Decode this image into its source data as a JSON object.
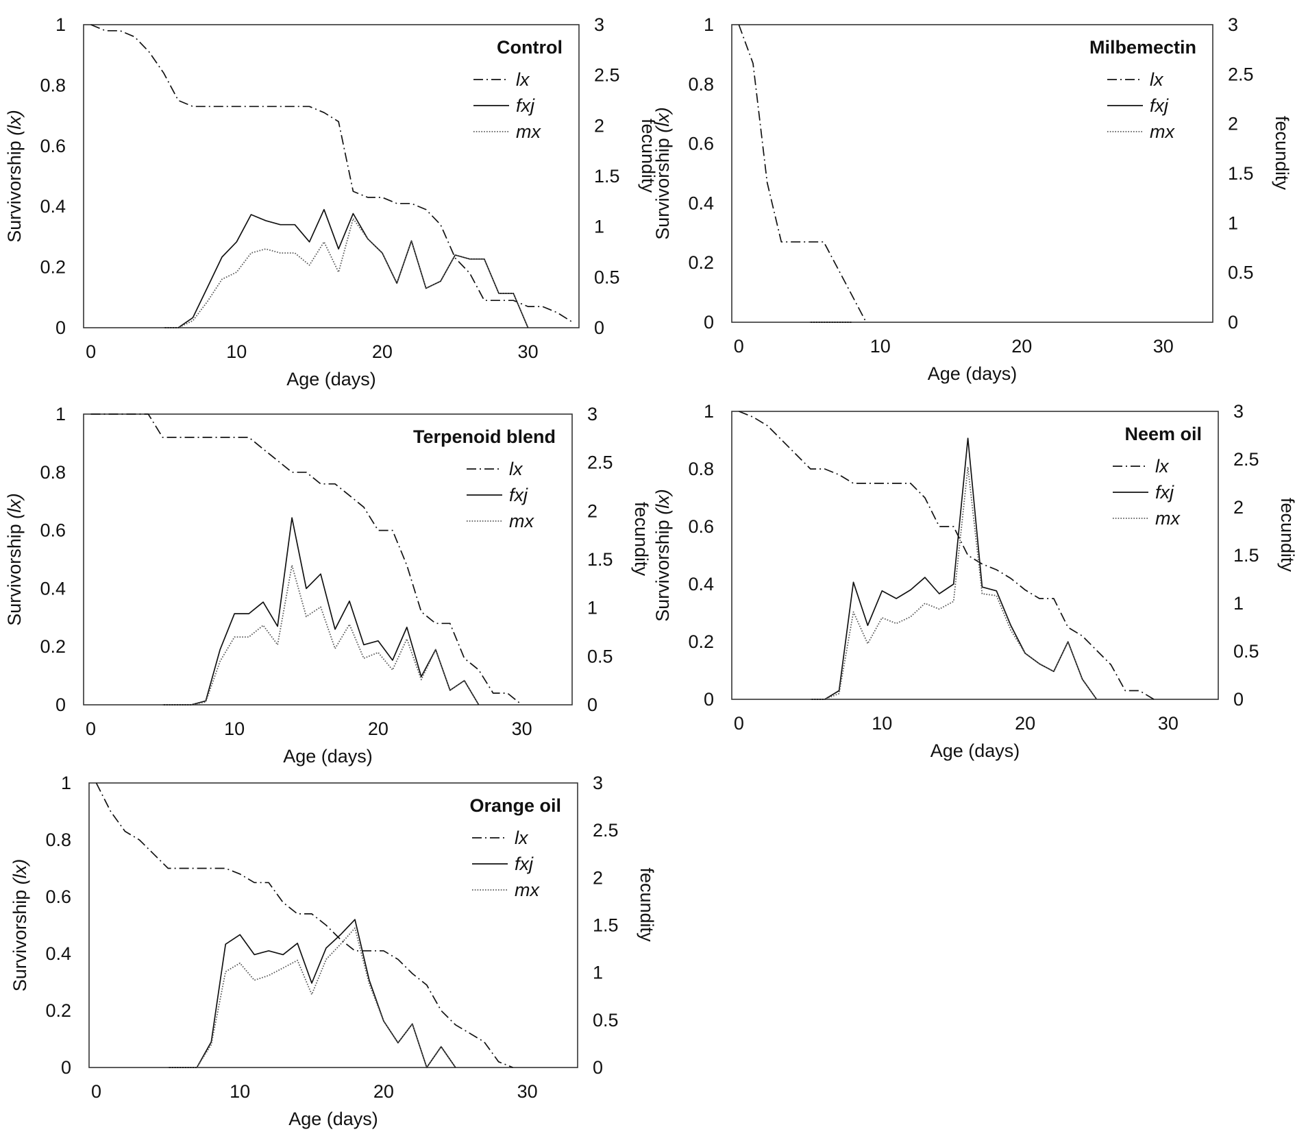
{
  "chart_data": [
    {
      "type": "line",
      "title": "Control",
      "xlabel": "Age (days)",
      "ylabel": "Survivorship",
      "ylabel_italic": "(lx)",
      "y2label": "fecundity",
      "xlim": [
        -0.5,
        33.5
      ],
      "xticks": [
        0,
        10,
        20,
        30
      ],
      "ylim": [
        0,
        1
      ],
      "yticks": [
        0,
        0.2,
        0.4,
        0.6,
        0.8,
        1
      ],
      "y2lim": [
        0,
        3
      ],
      "y2ticks": [
        0,
        0.5,
        1,
        1.5,
        2,
        2.5,
        3
      ],
      "grid": false,
      "legend": "top-right",
      "series": [
        {
          "name": "lx",
          "axis": "left",
          "style": "dashdot",
          "x": [
            0,
            1,
            2,
            3,
            4,
            5,
            6,
            7,
            8,
            9,
            10,
            11,
            12,
            13,
            14,
            15,
            16,
            17,
            18,
            19,
            20,
            21,
            22,
            23,
            24,
            25,
            26,
            27,
            28,
            29,
            30,
            31,
            32,
            33
          ],
          "y": [
            1,
            0.98,
            0.98,
            0.96,
            0.91,
            0.84,
            0.75,
            0.73,
            0.73,
            0.73,
            0.73,
            0.73,
            0.73,
            0.73,
            0.73,
            0.73,
            0.71,
            0.68,
            0.45,
            0.43,
            0.43,
            0.41,
            0.41,
            0.39,
            0.34,
            0.23,
            0.18,
            0.09,
            0.09,
            0.09,
            0.07,
            0.07,
            0.05,
            0.02
          ]
        },
        {
          "name": "fxj",
          "axis": "right",
          "style": "solid",
          "x": [
            5,
            6,
            7,
            8,
            9,
            10,
            11,
            12,
            13,
            14,
            15,
            16,
            17,
            18,
            19,
            20,
            21,
            22,
            23,
            24,
            25,
            26,
            27,
            28,
            29,
            30
          ],
          "y": [
            0,
            0,
            0.1,
            0.4,
            0.7,
            0.85,
            1.12,
            1.06,
            1.02,
            1.02,
            0.85,
            1.17,
            0.78,
            1.13,
            0.88,
            0.74,
            0.44,
            0.86,
            0.39,
            0.46,
            0.72,
            0.68,
            0.68,
            0.34,
            0.34,
            0
          ]
        },
        {
          "name": "mx",
          "axis": "right",
          "style": "dotted",
          "x": [
            5,
            6,
            7,
            8,
            9,
            10,
            11,
            12,
            13,
            14,
            15,
            16,
            17,
            18,
            19,
            20,
            21,
            22,
            23,
            24,
            25,
            26,
            27,
            28,
            29,
            30
          ],
          "y": [
            0,
            0,
            0.07,
            0.26,
            0.48,
            0.55,
            0.74,
            0.78,
            0.74,
            0.74,
            0.62,
            0.85,
            0.55,
            1.08,
            0.88,
            0.74,
            0.44,
            0.86,
            0.39,
            0.46,
            0.72,
            0.68,
            0.68,
            0.34,
            0.34,
            0
          ]
        }
      ]
    },
    {
      "type": "line",
      "title": "Milbemectin",
      "xlabel": "Age (days)",
      "ylabel": "Survivorship",
      "ylabel_italic": "(lx)",
      "y2label": "fecundity",
      "xlim": [
        -0.5,
        33.5
      ],
      "xticks": [
        0,
        10,
        20,
        30
      ],
      "ylim": [
        0,
        1
      ],
      "yticks": [
        0,
        0.2,
        0.4,
        0.6,
        0.8,
        1
      ],
      "y2lim": [
        0,
        3
      ],
      "y2ticks": [
        0,
        0.5,
        1,
        1.5,
        2,
        2.5,
        3
      ],
      "grid": false,
      "legend": "top-right",
      "series": [
        {
          "name": "lx",
          "axis": "left",
          "style": "dashdot",
          "x": [
            0,
            1,
            2,
            3,
            4,
            5,
            6,
            7,
            8,
            9
          ],
          "y": [
            1,
            0.87,
            0.47,
            0.27,
            0.27,
            0.27,
            0.27,
            0.18,
            0.09,
            0
          ]
        },
        {
          "name": "fxj",
          "axis": "right",
          "style": "solid",
          "x": [
            5,
            6,
            7,
            8
          ],
          "y": [
            0,
            0,
            0,
            0
          ]
        },
        {
          "name": "mx",
          "axis": "right",
          "style": "dotted",
          "x": [
            5,
            6,
            7,
            8
          ],
          "y": [
            0,
            0,
            0,
            0
          ]
        }
      ]
    },
    {
      "type": "line",
      "title": "Terpenoid blend",
      "xlabel": "Age (days)",
      "ylabel": "Survivorship",
      "ylabel_italic": "(lx)",
      "y2label": "fecundity",
      "xlim": [
        -0.5,
        33.5
      ],
      "xticks": [
        0,
        10,
        20,
        30
      ],
      "ylim": [
        0,
        1
      ],
      "yticks": [
        0,
        0.2,
        0.4,
        0.6,
        0.8,
        1
      ],
      "y2lim": [
        0,
        3
      ],
      "y2ticks": [
        0,
        0.5,
        1,
        1.5,
        2,
        2.5,
        3
      ],
      "grid": false,
      "legend": "top-right",
      "series": [
        {
          "name": "lx",
          "axis": "left",
          "style": "dashdot",
          "x": [
            0,
            1,
            2,
            3,
            4,
            5,
            6,
            7,
            8,
            9,
            10,
            11,
            12,
            13,
            14,
            15,
            16,
            17,
            18,
            19,
            20,
            21,
            22,
            23,
            24,
            25,
            26,
            27,
            28,
            29,
            30
          ],
          "y": [
            1,
            1,
            1,
            1,
            1,
            0.92,
            0.92,
            0.92,
            0.92,
            0.92,
            0.92,
            0.92,
            0.88,
            0.84,
            0.8,
            0.8,
            0.76,
            0.76,
            0.72,
            0.68,
            0.6,
            0.6,
            0.48,
            0.32,
            0.28,
            0.28,
            0.16,
            0.12,
            0.04,
            0.04,
            0
          ]
        },
        {
          "name": "fxj",
          "axis": "right",
          "style": "solid",
          "x": [
            5,
            6,
            7,
            8,
            9,
            10,
            11,
            12,
            13,
            14,
            15,
            16,
            17,
            18,
            19,
            20,
            21,
            22,
            23,
            24,
            25,
            26,
            27
          ],
          "y": [
            0,
            0,
            0,
            0.04,
            0.57,
            0.94,
            0.94,
            1.06,
            0.81,
            1.93,
            1.2,
            1.35,
            0.78,
            1.07,
            0.62,
            0.66,
            0.46,
            0.8,
            0.29,
            0.57,
            0.15,
            0.25,
            0
          ]
        },
        {
          "name": "mx",
          "axis": "right",
          "style": "dotted",
          "x": [
            5,
            6,
            7,
            8,
            9,
            10,
            11,
            12,
            13,
            14,
            15,
            16,
            17,
            18,
            19,
            20,
            21,
            22,
            23,
            24,
            25,
            26,
            27
          ],
          "y": [
            0,
            0,
            0,
            0.03,
            0.45,
            0.7,
            0.7,
            0.82,
            0.62,
            1.44,
            0.91,
            1.01,
            0.58,
            0.83,
            0.48,
            0.54,
            0.36,
            0.68,
            0.26,
            0.57,
            0.15,
            0.25,
            0
          ]
        }
      ]
    },
    {
      "type": "line",
      "title": "Neem oil",
      "xlabel": "Age (days)",
      "ylabel": "Survivorship",
      "ylabel_italic": "(lx)",
      "y2label": "fecundity",
      "xlim": [
        -0.5,
        33.5
      ],
      "xticks": [
        0,
        10,
        20,
        30
      ],
      "ylim": [
        0,
        1
      ],
      "yticks": [
        0,
        0.2,
        0.4,
        0.6,
        0.8,
        1
      ],
      "y2lim": [
        0,
        3
      ],
      "y2ticks": [
        0,
        0.5,
        1,
        1.5,
        2,
        2.5,
        3
      ],
      "grid": false,
      "legend": "top-right",
      "series": [
        {
          "name": "lx",
          "axis": "left",
          "style": "dashdot",
          "x": [
            0,
            1,
            2,
            3,
            4,
            5,
            6,
            7,
            8,
            9,
            10,
            11,
            12,
            13,
            14,
            15,
            16,
            17,
            18,
            19,
            20,
            21,
            22,
            23,
            24,
            25,
            26,
            27,
            28,
            29
          ],
          "y": [
            1,
            0.98,
            0.95,
            0.9,
            0.85,
            0.8,
            0.8,
            0.78,
            0.75,
            0.75,
            0.75,
            0.75,
            0.75,
            0.7,
            0.6,
            0.6,
            0.5,
            0.47,
            0.45,
            0.42,
            0.38,
            0.35,
            0.35,
            0.25,
            0.22,
            0.17,
            0.12,
            0.03,
            0.03,
            0
          ]
        },
        {
          "name": "fxj",
          "axis": "right",
          "style": "solid",
          "x": [
            5,
            6,
            7,
            8,
            9,
            10,
            11,
            12,
            13,
            14,
            15,
            16,
            17,
            18,
            19,
            20,
            21,
            22,
            23,
            24,
            25
          ],
          "y": [
            0,
            0,
            0.09,
            1.22,
            0.77,
            1.13,
            1.05,
            1.14,
            1.27,
            1.1,
            1.2,
            2.72,
            1.17,
            1.13,
            0.77,
            0.48,
            0.37,
            0.29,
            0.6,
            0.21,
            0
          ]
        },
        {
          "name": "mx",
          "axis": "right",
          "style": "dotted",
          "x": [
            5,
            6,
            7,
            8,
            9,
            10,
            11,
            12,
            13,
            14,
            15,
            16,
            17,
            18,
            19,
            20,
            21,
            22,
            23,
            24,
            25
          ],
          "y": [
            0,
            0,
            0.06,
            0.91,
            0.58,
            0.85,
            0.79,
            0.86,
            1.0,
            0.94,
            1.02,
            2.42,
            1.1,
            1.08,
            0.72,
            0.48,
            0.37,
            0.29,
            0.6,
            0.21,
            0
          ]
        }
      ]
    },
    {
      "type": "line",
      "title": "Orange oil",
      "xlabel": "Age (days)",
      "ylabel": "Survivorship",
      "ylabel_italic": "(lx)",
      "y2label": "fecundity",
      "xlim": [
        -0.5,
        33.5
      ],
      "xticks": [
        0,
        10,
        20,
        30
      ],
      "ylim": [
        0,
        1
      ],
      "yticks": [
        0,
        0.2,
        0.4,
        0.6,
        0.8,
        1
      ],
      "y2lim": [
        0,
        3
      ],
      "y2ticks": [
        0,
        0.5,
        1,
        1.5,
        2,
        2.5,
        3
      ],
      "grid": false,
      "legend": "top-right",
      "series": [
        {
          "name": "lx",
          "axis": "left",
          "style": "dashdot",
          "x": [
            0,
            1,
            2,
            3,
            4,
            5,
            6,
            7,
            8,
            9,
            10,
            11,
            12,
            13,
            14,
            15,
            16,
            17,
            18,
            19,
            20,
            21,
            22,
            23,
            24,
            25,
            26,
            27,
            28,
            29
          ],
          "y": [
            1,
            0.9,
            0.83,
            0.8,
            0.75,
            0.7,
            0.7,
            0.7,
            0.7,
            0.7,
            0.68,
            0.65,
            0.65,
            0.58,
            0.54,
            0.54,
            0.5,
            0.45,
            0.41,
            0.41,
            0.41,
            0.38,
            0.33,
            0.29,
            0.2,
            0.15,
            0.12,
            0.09,
            0.02,
            0
          ]
        },
        {
          "name": "fxj",
          "axis": "right",
          "style": "solid",
          "x": [
            5,
            6,
            7,
            8,
            9,
            10,
            11,
            12,
            13,
            14,
            15,
            16,
            17,
            18,
            19,
            20,
            21,
            22,
            23,
            24,
            25
          ],
          "y": [
            0,
            0,
            0,
            0.27,
            1.3,
            1.4,
            1.19,
            1.23,
            1.19,
            1.31,
            0.89,
            1.26,
            1.4,
            1.56,
            0.92,
            0.49,
            0.26,
            0.46,
            0,
            0.22,
            0
          ]
        },
        {
          "name": "mx",
          "axis": "right",
          "style": "dotted",
          "x": [
            5,
            6,
            7,
            8,
            9,
            10,
            11,
            12,
            13,
            14,
            15,
            16,
            17,
            18,
            19,
            20,
            21,
            22,
            23,
            24,
            25
          ],
          "y": [
            0,
            0,
            0,
            0.24,
            1.01,
            1.1,
            0.92,
            0.97,
            1.05,
            1.13,
            0.77,
            1.14,
            1.3,
            1.47,
            0.88,
            0.49,
            0.26,
            0.46,
            0,
            0.22,
            0
          ]
        }
      ]
    }
  ]
}
